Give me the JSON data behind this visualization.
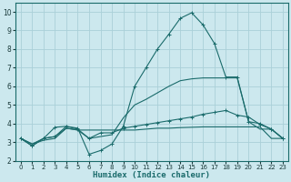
{
  "bg_color": "#cce8ee",
  "grid_color": "#aad0d8",
  "line_color": "#1a6b6b",
  "xlabel": "Humidex (Indice chaleur)",
  "xlim": [
    -0.5,
    23.5
  ],
  "ylim": [
    2,
    10.5
  ],
  "yticks": [
    2,
    3,
    4,
    5,
    6,
    7,
    8,
    9,
    10
  ],
  "xticks": [
    0,
    1,
    2,
    3,
    4,
    5,
    6,
    7,
    8,
    9,
    10,
    11,
    12,
    13,
    14,
    15,
    16,
    17,
    18,
    19,
    20,
    21,
    22,
    23
  ],
  "lines": [
    {
      "x": [
        0,
        1,
        2,
        3,
        4,
        5,
        6,
        7,
        8,
        9,
        10,
        11,
        12,
        13,
        14,
        15,
        16,
        17,
        18,
        19,
        20,
        21,
        22,
        23
      ],
      "y": [
        3.2,
        2.8,
        3.2,
        3.3,
        3.85,
        3.75,
        2.35,
        2.55,
        2.9,
        3.85,
        6.0,
        7.0,
        8.0,
        8.8,
        9.65,
        9.95,
        9.3,
        8.3,
        6.5,
        6.5,
        4.1,
        4.0,
        3.7,
        3.2
      ],
      "marker": "+"
    },
    {
      "x": [
        0,
        1,
        2,
        3,
        4,
        5,
        6,
        7,
        8,
        9,
        10,
        11,
        12,
        13,
        14,
        15,
        16,
        17,
        18,
        19,
        20,
        21,
        22,
        23
      ],
      "y": [
        3.2,
        2.8,
        3.2,
        3.8,
        3.85,
        3.7,
        3.2,
        3.5,
        3.5,
        3.75,
        3.85,
        3.95,
        4.05,
        4.15,
        4.25,
        4.35,
        4.5,
        4.6,
        4.7,
        4.45,
        4.35,
        3.95,
        3.7,
        3.2
      ],
      "marker": "+"
    },
    {
      "x": [
        0,
        1,
        2,
        3,
        4,
        5,
        6,
        7,
        8,
        9,
        10,
        11,
        12,
        13,
        14,
        15,
        16,
        17,
        18,
        19,
        20,
        21,
        22,
        23
      ],
      "y": [
        3.2,
        2.9,
        3.1,
        3.2,
        3.75,
        3.65,
        3.65,
        3.65,
        3.65,
        3.65,
        3.65,
        3.7,
        3.75,
        3.75,
        3.78,
        3.8,
        3.82,
        3.82,
        3.82,
        3.82,
        3.82,
        3.82,
        3.2,
        3.2
      ],
      "marker": null
    },
    {
      "x": [
        0,
        1,
        2,
        3,
        4,
        5,
        6,
        7,
        8,
        9,
        10,
        11,
        12,
        13,
        14,
        15,
        16,
        17,
        18,
        19,
        20,
        21,
        22,
        23
      ],
      "y": [
        3.2,
        2.9,
        3.2,
        3.3,
        3.75,
        3.65,
        3.2,
        3.3,
        3.4,
        4.3,
        5.0,
        5.3,
        5.65,
        6.0,
        6.3,
        6.4,
        6.45,
        6.45,
        6.45,
        6.45,
        4.1,
        3.7,
        3.7,
        3.2
      ],
      "marker": null
    }
  ]
}
